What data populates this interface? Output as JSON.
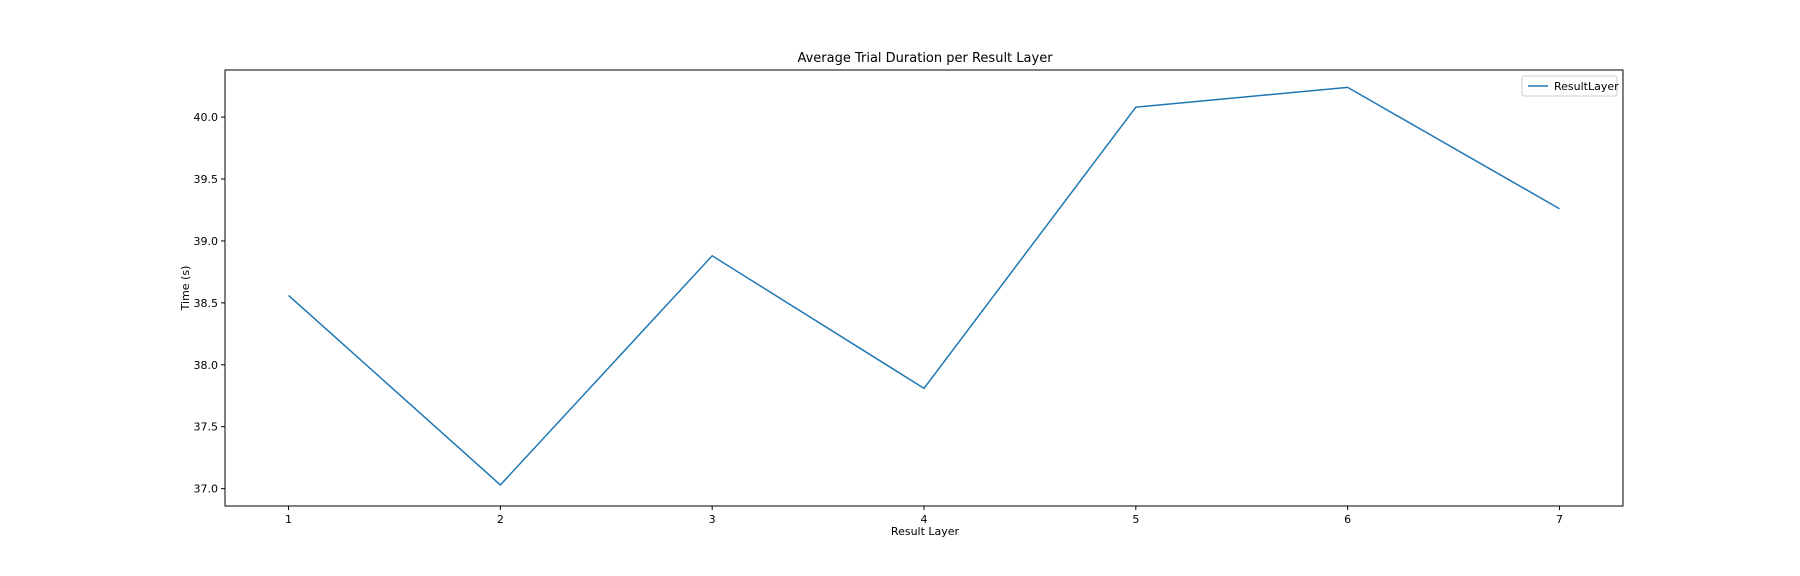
{
  "chart_data": {
    "type": "line",
    "title": "Average Trial Duration per Result Layer",
    "xlabel": "Result Layer",
    "ylabel": "Time (s)",
    "x": [
      1,
      2,
      3,
      4,
      5,
      6,
      7
    ],
    "xticks": [
      "1",
      "2",
      "3",
      "4",
      "5",
      "6",
      "7"
    ],
    "yticks": [
      "37.0",
      "37.5",
      "38.0",
      "38.5",
      "39.0",
      "39.5",
      "40.0"
    ],
    "xlim": [
      0.7,
      7.3
    ],
    "ylim": [
      36.86,
      40.38
    ],
    "series": [
      {
        "name": "ResultLayer",
        "color": "#1f77b4",
        "values": [
          38.56,
          37.03,
          38.88,
          37.81,
          40.08,
          40.24,
          39.26
        ]
      }
    ],
    "legend": "top-right",
    "grid": false
  }
}
